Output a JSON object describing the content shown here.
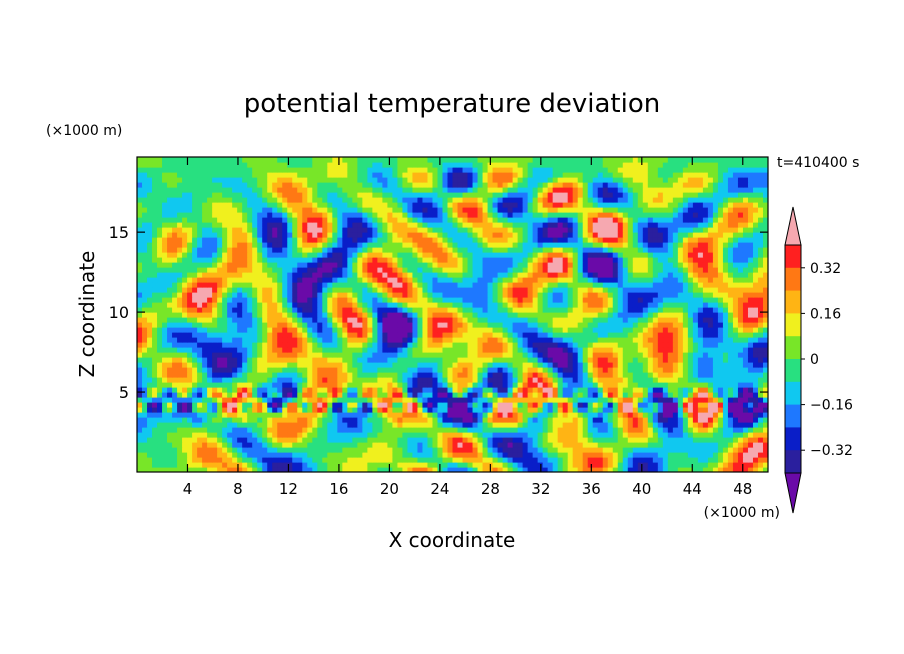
{
  "chart_data": {
    "type": "heatmap",
    "title": "potential temperature deviation",
    "xlabel": "X coordinate",
    "ylabel": "Z coordinate",
    "x_unit": "(×1000 m)",
    "y_unit": "(×1000 m)",
    "time_label": "t=410400 s",
    "xlim": [
      0,
      50
    ],
    "ylim": [
      0,
      19.7
    ],
    "x_ticks": [
      4,
      8,
      12,
      16,
      20,
      24,
      28,
      32,
      36,
      40,
      44,
      48
    ],
    "y_ticks": [
      5,
      10,
      15
    ],
    "colorbar": {
      "levels": [
        -0.4,
        -0.32,
        -0.24,
        -0.16,
        -0.08,
        0,
        0.08,
        0.16,
        0.24,
        0.32,
        0.4
      ],
      "tick_values": [
        -0.32,
        -0.16,
        0,
        0.16,
        0.32
      ],
      "tick_labels": [
        "−0.32",
        "−0.16",
        "0",
        "0.16",
        "0.32"
      ],
      "colors": [
        "#6a0aa8",
        "#2a1f9e",
        "#0a1ec8",
        "#1e78ff",
        "#10c8f0",
        "#28e080",
        "#78e628",
        "#f0f01e",
        "#ffb414",
        "#ff7814",
        "#ff2020",
        "#f6a8b0"
      ],
      "extend": "both"
    }
  }
}
